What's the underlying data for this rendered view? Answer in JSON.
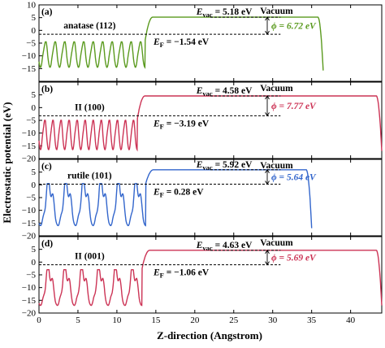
{
  "chart_data": {
    "type": "line",
    "ylabel": "Electrostatic potential (eV)",
    "xlabel": "Z-direction (Angstrom)",
    "xlim": [
      0,
      44
    ],
    "xticks": [
      0,
      5,
      10,
      15,
      20,
      25,
      30,
      35,
      40
    ],
    "panels": [
      {
        "tag": "(a)",
        "material": "anatase (112)",
        "color": "#5a9a1e",
        "ylim": [
          -20,
          10
        ],
        "yticks": [
          -15,
          -10,
          -5,
          0,
          5,
          10
        ],
        "vacuum_label": "Vacuum",
        "evac_prefix": "E",
        "evac_sub": "vac",
        "evac_text": " = 5.18 eV",
        "ef_prefix": "E",
        "ef_sub": "F",
        "ef_text": " = −1.54 eV",
        "phi_text": "ϕ = 6.72 eV",
        "evac": 5.18,
        "ef": -1.54,
        "phi": 6.72,
        "slab_end": 14.2,
        "vac_end": 36.5,
        "wells": 11,
        "low": -14.5,
        "high": -4.5
      },
      {
        "tag": "(b)",
        "material": "II (100)",
        "color": "#cc3355",
        "ylim": [
          -20,
          10
        ],
        "yticks": [
          -20,
          -15,
          -10,
          -5,
          0,
          5
        ],
        "vacuum_label": "Vacuum",
        "evac_prefix": "E",
        "evac_sub": "vac",
        "evac_text": " = 4.58 eV",
        "ef_prefix": "E",
        "ef_sub": "F",
        "ef_text": " = −3.19 eV",
        "phi_text": "ϕ = 7.77 eV",
        "evac": 4.58,
        "ef": -3.19,
        "phi": 7.77,
        "slab_end": 13.2,
        "vac_end": 44.0,
        "wells": 12,
        "low": -16.5,
        "high": -5.0
      },
      {
        "tag": "(c)",
        "material": "rutile (101)",
        "color": "#3366cc",
        "ylim": [
          -20,
          10
        ],
        "yticks": [
          -20,
          -15,
          -10,
          -5,
          0,
          5
        ],
        "vacuum_label": "Vacuum",
        "evac_prefix": "E",
        "evac_sub": "vac",
        "evac_text": " = 5.92 eV",
        "ef_prefix": "E",
        "ef_sub": "F",
        "ef_text": " = 0.28 eV",
        "phi_text": "ϕ = 5.64 eV",
        "evac": 5.92,
        "ef": 0.28,
        "phi": 5.64,
        "slab_end": 14.3,
        "vac_end": 35.0,
        "wells": 6,
        "low": -16.0,
        "high": 0.5
      },
      {
        "tag": "(d)",
        "material": "II (001)",
        "color": "#cc3355",
        "ylim": [
          -20,
          10
        ],
        "yticks": [
          -20,
          -15,
          -10,
          -5,
          0,
          5
        ],
        "vacuum_label": "Vacuum",
        "evac_prefix": "E",
        "evac_sub": "vac",
        "evac_text": " = 4.63 eV",
        "ef_prefix": "E",
        "ef_sub": "F",
        "ef_text": " = −1.06 eV",
        "phi_text": "ϕ = 5.69 eV",
        "evac": 4.63,
        "ef": -1.06,
        "phi": 5.69,
        "slab_end": 13.8,
        "vac_end": 44.0,
        "wells": 6,
        "low": -17.0,
        "high": -3.0
      }
    ]
  }
}
